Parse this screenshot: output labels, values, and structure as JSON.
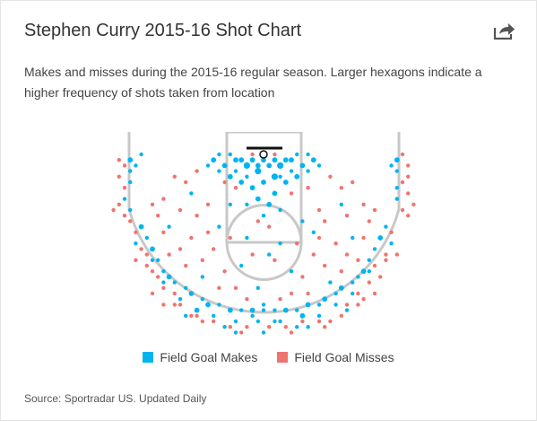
{
  "header": {
    "title": "Stephen Curry 2015-16 Shot Chart",
    "subtitle": "Makes and misses during the 2015-16 regular season. Larger hexagons indicate a higher frequency of shots taken from location",
    "share_icon": "share-icon"
  },
  "footer": {
    "source": "Source: Sportradar US. Updated Daily"
  },
  "colors": {
    "make": "#00b4f0",
    "miss": "#f0746e",
    "court_lines": "#c8c8c8",
    "rim": "#111111"
  },
  "chart_data": {
    "type": "scatter",
    "title": "Stephen Curry 2015-16 Shot Chart",
    "xlabel": "",
    "ylabel": "",
    "grid": false,
    "legend_position": "bottom-center",
    "series": [
      {
        "name": "Field Goal Makes",
        "color": "#00b4f0",
        "points": [
          [
            0,
            1,
            2
          ],
          [
            -3,
            2,
            3
          ],
          [
            3,
            2,
            3
          ],
          [
            -1,
            3,
            3
          ],
          [
            2,
            4,
            3
          ],
          [
            -5,
            1,
            2
          ],
          [
            5,
            1,
            2
          ],
          [
            -7,
            2,
            2
          ],
          [
            7,
            2,
            2
          ],
          [
            -4,
            5,
            2
          ],
          [
            4,
            5,
            2
          ],
          [
            0,
            5,
            2
          ],
          [
            -2,
            6,
            2
          ],
          [
            2,
            7,
            2
          ],
          [
            -6,
            4,
            2
          ],
          [
            6,
            4,
            2
          ],
          [
            -9,
            1,
            2
          ],
          [
            9,
            1,
            2
          ],
          [
            -1,
            8,
            2
          ],
          [
            1,
            9,
            2
          ],
          [
            -3,
            9,
            1
          ],
          [
            3,
            10,
            1
          ],
          [
            0,
            11,
            1
          ],
          [
            -8,
            3,
            1
          ],
          [
            8,
            3,
            1
          ],
          [
            -10,
            2,
            1
          ],
          [
            10,
            2,
            1
          ],
          [
            -4,
            1,
            2
          ],
          [
            4,
            1,
            2
          ],
          [
            -6,
            0,
            1
          ],
          [
            6,
            0,
            1
          ],
          [
            -2,
            1,
            2
          ],
          [
            2,
            1,
            2
          ],
          [
            -5,
            3,
            1
          ],
          [
            5,
            3,
            1
          ],
          [
            -8,
            0,
            1
          ],
          [
            8,
            0,
            1
          ],
          [
            -3,
            4,
            1
          ],
          [
            3,
            4,
            1
          ],
          [
            1,
            2,
            2
          ],
          [
            -1,
            2,
            2
          ],
          [
            -3,
            15,
            1
          ],
          [
            3,
            16,
            1
          ],
          [
            -8,
            13,
            1
          ],
          [
            9,
            14,
            1
          ],
          [
            1,
            18,
            1
          ],
          [
            -4,
            20,
            1
          ],
          [
            5,
            21,
            1
          ],
          [
            -1,
            24,
            1
          ],
          [
            0,
            27,
            1
          ],
          [
            -2,
            29,
            1
          ],
          [
            2,
            30,
            1
          ],
          [
            -5,
            32,
            1
          ],
          [
            6,
            31,
            1
          ],
          [
            -11,
            22,
            1
          ],
          [
            12,
            23,
            1
          ],
          [
            -13,
            7,
            1
          ],
          [
            14,
            9,
            1
          ],
          [
            -17,
            13,
            1
          ],
          [
            16,
            15,
            1
          ],
          [
            -6,
            9,
            1
          ],
          [
            7,
            12,
            1
          ],
          [
            -24,
            1,
            2
          ],
          [
            -24,
            3,
            1
          ],
          [
            -24,
            5,
            1
          ],
          [
            -25,
            8,
            1
          ],
          [
            -24,
            10,
            1
          ],
          [
            -23,
            2,
            1
          ],
          [
            -22,
            0,
            1
          ],
          [
            24,
            1,
            2
          ],
          [
            24,
            3,
            1
          ],
          [
            24,
            6,
            1
          ],
          [
            24,
            8,
            1
          ],
          [
            23,
            2,
            1
          ],
          [
            -22,
            13,
            2
          ],
          [
            -21,
            15,
            1
          ],
          [
            -20,
            17,
            2
          ],
          [
            -19,
            19,
            1
          ],
          [
            -18,
            21,
            1
          ],
          [
            -17,
            22,
            2
          ],
          [
            -16,
            23,
            1
          ],
          [
            -14,
            24,
            1
          ],
          [
            -13,
            25,
            2
          ],
          [
            -11,
            26,
            1
          ],
          [
            -10,
            27,
            2
          ],
          [
            -8,
            27,
            1
          ],
          [
            -6,
            28,
            2
          ],
          [
            -4,
            28,
            1
          ],
          [
            -2,
            28,
            2
          ],
          [
            0,
            28,
            1
          ],
          [
            2,
            28,
            1
          ],
          [
            4,
            28,
            2
          ],
          [
            6,
            28,
            1
          ],
          [
            8,
            27,
            2
          ],
          [
            10,
            27,
            1
          ],
          [
            11,
            26,
            2
          ],
          [
            13,
            25,
            1
          ],
          [
            14,
            24,
            2
          ],
          [
            16,
            23,
            1
          ],
          [
            17,
            22,
            1
          ],
          [
            18,
            21,
            2
          ],
          [
            19,
            19,
            1
          ],
          [
            20,
            17,
            1
          ],
          [
            21,
            15,
            2
          ],
          [
            22,
            13,
            1
          ],
          [
            -20,
            19,
            1
          ],
          [
            -18,
            23,
            1
          ],
          [
            -15,
            26,
            1
          ],
          [
            -12,
            28,
            2
          ],
          [
            -9,
            29,
            1
          ],
          [
            -5,
            30,
            1
          ],
          [
            -1,
            30,
            1
          ],
          [
            3,
            30,
            1
          ],
          [
            7,
            29,
            2
          ],
          [
            10,
            29,
            1
          ],
          [
            13,
            27,
            1
          ],
          [
            16,
            25,
            1
          ],
          [
            19,
            21,
            1
          ],
          [
            -23,
            16,
            1
          ],
          [
            23,
            16,
            1
          ],
          [
            -14,
            29,
            1
          ],
          [
            15,
            28,
            1
          ],
          [
            -7,
            31,
            1
          ],
          [
            8,
            31,
            1
          ],
          [
            0,
            32,
            1
          ]
        ]
      },
      {
        "name": "Field Goal Misses",
        "color": "#f0746e",
        "points": [
          [
            -2,
            0,
            1
          ],
          [
            2,
            0,
            1
          ],
          [
            -5,
            6,
            1
          ],
          [
            5,
            7,
            1
          ],
          [
            -7,
            5,
            1
          ],
          [
            8,
            6,
            1
          ],
          [
            -1,
            12,
            1
          ],
          [
            1,
            13,
            1
          ],
          [
            -12,
            3,
            1
          ],
          [
            12,
            4,
            1
          ],
          [
            -14,
            5,
            1
          ],
          [
            14,
            6,
            1
          ],
          [
            -15,
            10,
            1
          ],
          [
            15,
            11,
            1
          ],
          [
            -10,
            9,
            1
          ],
          [
            10,
            10,
            1
          ],
          [
            -12,
            11,
            1
          ],
          [
            11,
            12,
            1
          ],
          [
            -16,
            4,
            1
          ],
          [
            16,
            5,
            1
          ],
          [
            -18,
            8,
            1
          ],
          [
            18,
            9,
            1
          ],
          [
            -19,
            11,
            1
          ],
          [
            19,
            12,
            1
          ],
          [
            -13,
            15,
            1
          ],
          [
            13,
            16,
            1
          ],
          [
            -15,
            17,
            1
          ],
          [
            15,
            18,
            1
          ],
          [
            -9,
            17,
            1
          ],
          [
            9,
            18,
            1
          ],
          [
            -11,
            19,
            1
          ],
          [
            11,
            20,
            1
          ],
          [
            -7,
            21,
            1
          ],
          [
            7,
            22,
            1
          ],
          [
            -5,
            24,
            1
          ],
          [
            5,
            25,
            1
          ],
          [
            -3,
            26,
            1
          ],
          [
            3,
            26,
            1
          ],
          [
            -8,
            24,
            1
          ],
          [
            8,
            25,
            1
          ],
          [
            -17,
            18,
            1
          ],
          [
            17,
            19,
            1
          ],
          [
            -14,
            20,
            1
          ],
          [
            14,
            21,
            1
          ],
          [
            -6,
            15,
            1
          ],
          [
            6,
            16,
            1
          ],
          [
            -2,
            18,
            1
          ],
          [
            2,
            19,
            1
          ],
          [
            -20,
            9,
            1
          ],
          [
            20,
            10,
            1
          ],
          [
            -18,
            14,
            1
          ],
          [
            18,
            15,
            1
          ],
          [
            -10,
            14,
            1
          ],
          [
            10,
            15,
            1
          ],
          [
            -26,
            1,
            1
          ],
          [
            -26,
            4,
            1
          ],
          [
            -25,
            6,
            1
          ],
          [
            -26,
            9,
            1
          ],
          [
            -25,
            11,
            1
          ],
          [
            -25,
            2,
            1
          ],
          [
            -24,
            12,
            1
          ],
          [
            26,
            2,
            1
          ],
          [
            26,
            4,
            1
          ],
          [
            25,
            5,
            1
          ],
          [
            26,
            7,
            1
          ],
          [
            25,
            10,
            1
          ],
          [
            26,
            11,
            1
          ],
          [
            25,
            0,
            1
          ],
          [
            -23,
            14,
            1
          ],
          [
            -22,
            17,
            1
          ],
          [
            -21,
            18,
            1
          ],
          [
            -20,
            21,
            1
          ],
          [
            -18,
            24,
            1
          ],
          [
            -16,
            25,
            1
          ],
          [
            -15,
            27,
            1
          ],
          [
            -12,
            29,
            1
          ],
          [
            -9,
            30,
            1
          ],
          [
            -6,
            31,
            1
          ],
          [
            -3,
            31,
            1
          ],
          [
            1,
            31,
            1
          ],
          [
            4,
            31,
            1
          ],
          [
            7,
            30,
            1
          ],
          [
            10,
            30,
            1
          ],
          [
            12,
            30,
            1
          ],
          [
            15,
            27,
            1
          ],
          [
            17,
            25,
            1
          ],
          [
            19,
            23,
            1
          ],
          [
            20,
            20,
            1
          ],
          [
            22,
            18,
            1
          ],
          [
            23,
            14,
            1
          ],
          [
            -19,
            22,
            1
          ],
          [
            -16,
            27,
            1
          ],
          [
            -11,
            30,
            1
          ],
          [
            -4,
            32,
            1
          ],
          [
            5,
            32,
            1
          ],
          [
            11,
            31,
            1
          ],
          [
            17,
            27,
            1
          ],
          [
            21,
            22,
            1
          ],
          [
            -21,
            20,
            1
          ],
          [
            22,
            19,
            1
          ],
          [
            -13,
            29,
            1
          ],
          [
            14,
            29,
            1
          ],
          [
            -8,
            33,
            1
          ],
          [
            9,
            33,
            1
          ],
          [
            -1,
            33,
            1
          ],
          [
            2,
            33,
            1
          ],
          [
            -18,
            27,
            1
          ],
          [
            18,
            26,
            1
          ],
          [
            -23,
            19,
            1
          ],
          [
            24,
            18,
            1
          ],
          [
            -27,
            10,
            1
          ],
          [
            27,
            9,
            1
          ],
          [
            -20,
            25,
            1
          ],
          [
            20,
            25,
            1
          ]
        ]
      }
    ]
  }
}
